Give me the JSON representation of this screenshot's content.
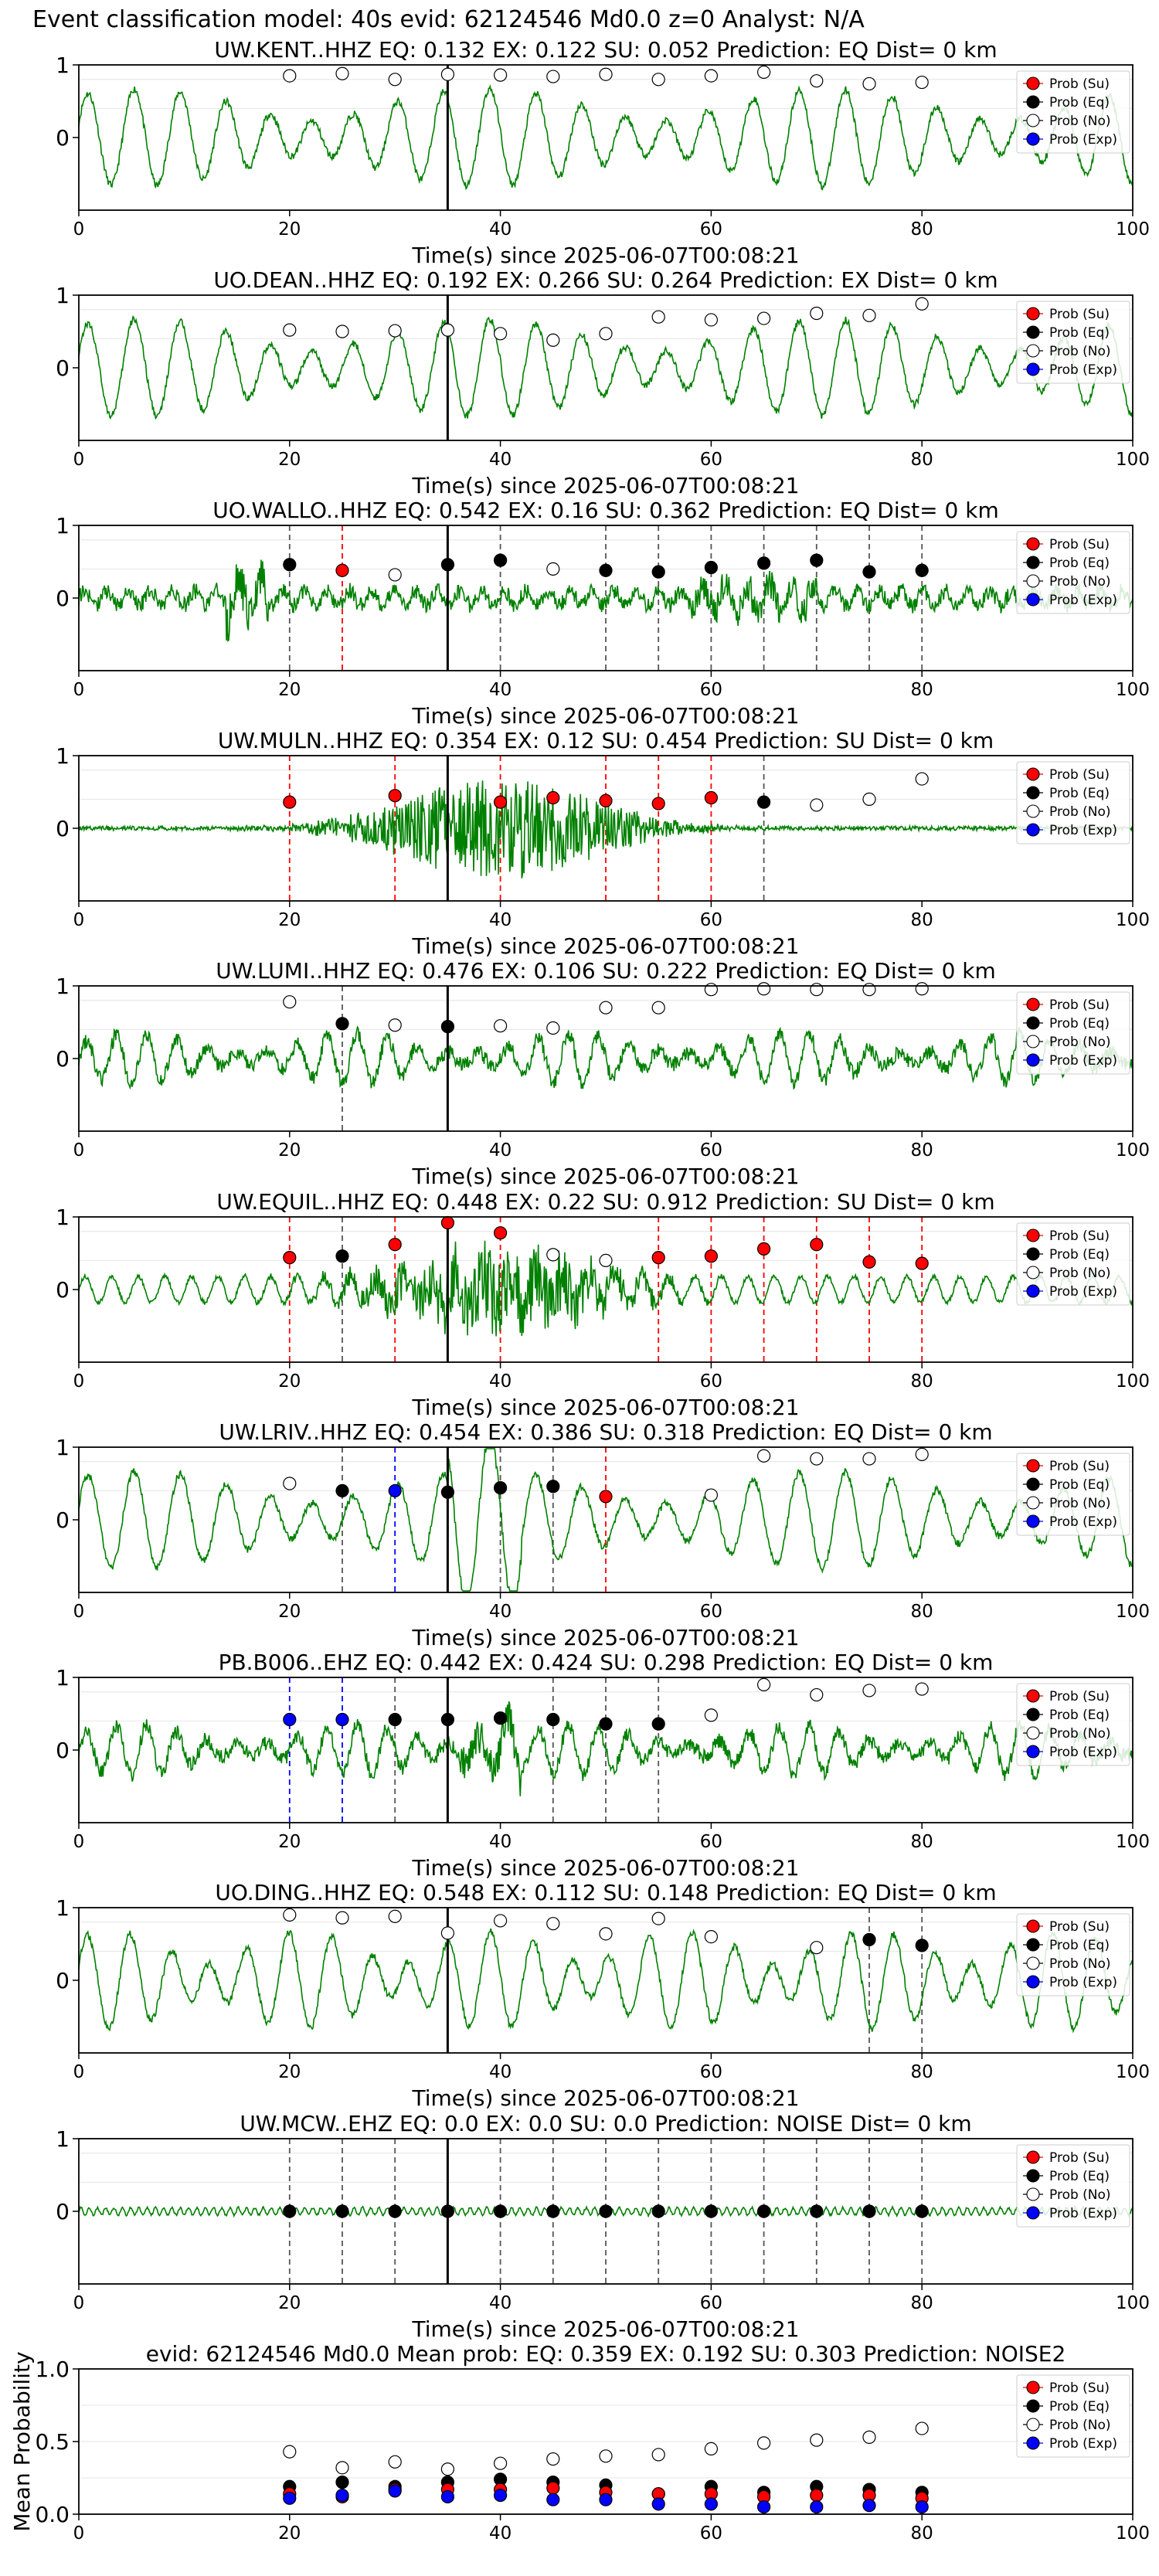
{
  "suptitle": "Event classification model: 40s evid: 62124546 Md0.0 z=0 Analyst: N/A",
  "colors": {
    "trace": "#008000",
    "su": "#ff0000",
    "eq": "#000000",
    "no": "#ffffff",
    "exp": "#0000ff",
    "su_line": "#ff0000",
    "eq_line": "#000000",
    "exp_line": "#0000ff"
  },
  "legend": [
    "Prob (Su)",
    "Prob (Eq)",
    "Prob (No)",
    "Prob (Exp)"
  ],
  "common": {
    "xlabel": "Time(s) since 2025-06-07T00:08:21",
    "xlim": [
      0,
      100
    ],
    "xticks": [
      0,
      20,
      40,
      60,
      80,
      100
    ],
    "pick_time": 35,
    "times": [
      20,
      25,
      30,
      35,
      40,
      45,
      50,
      55,
      60,
      65,
      70,
      75,
      80
    ]
  },
  "chart_data": [
    {
      "type": "line",
      "title": "UW.KENT..HHZ   EQ: 0.132  EX: 0.122  SU: 0.052   Prediction: EQ    Dist= 0 km",
      "yticks": [
        "1",
        "0"
      ],
      "trace": "smooth",
      "prob_no": [
        0.85,
        0.88,
        0.8,
        0.87,
        0.86,
        0.84,
        0.87,
        0.8,
        0.85,
        0.9,
        0.78,
        0.74,
        0.76
      ],
      "prob_eq": [],
      "prob_su": [],
      "prob_exp": [],
      "eq_lines": [],
      "su_lines": [],
      "exp_lines": []
    },
    {
      "type": "line",
      "title": "UO.DEAN..HHZ   EQ: 0.192  EX: 0.266  SU: 0.264   Prediction: EX    Dist= 0 km",
      "yticks": [
        "1",
        "0"
      ],
      "trace": "smooth",
      "prob_no": [
        0.52,
        0.5,
        0.51,
        0.52,
        0.47,
        0.38,
        0.47,
        0.7,
        0.66,
        0.68,
        0.75,
        0.72,
        0.88
      ],
      "prob_eq": [],
      "prob_su": [],
      "prob_exp": [],
      "eq_lines": [],
      "su_lines": [],
      "exp_lines": []
    },
    {
      "type": "line",
      "title": "UO.WALLO..HHZ   EQ: 0.542  EX: 0.16  SU: 0.362   Prediction: EQ    Dist= 0 km",
      "yticks": [
        "1",
        "0"
      ],
      "trace": "noisy",
      "prob_no": [
        [
          30,
          0.32
        ],
        [
          45,
          0.4
        ]
      ],
      "prob_eq": [
        [
          20,
          0.46
        ],
        [
          35,
          0.46
        ],
        [
          40,
          0.52
        ],
        [
          50,
          0.38
        ],
        [
          55,
          0.36
        ],
        [
          60,
          0.42
        ],
        [
          65,
          0.48
        ],
        [
          70,
          0.52
        ],
        [
          75,
          0.36
        ],
        [
          80,
          0.38
        ]
      ],
      "prob_su": [
        [
          25,
          0.38
        ]
      ],
      "prob_exp": [],
      "eq_lines": [
        20,
        40,
        50,
        55,
        60,
        65,
        70,
        75,
        80
      ],
      "su_lines": [
        25
      ],
      "exp_lines": []
    },
    {
      "type": "line",
      "title": "UW.MULN..HHZ   EQ: 0.354  EX: 0.12  SU: 0.454   Prediction: SU    Dist= 0 km",
      "yticks": [
        "1",
        "0"
      ],
      "trace": "burst",
      "prob_no": [
        [
          70,
          0.32
        ],
        [
          75,
          0.4
        ],
        [
          80,
          0.68
        ]
      ],
      "prob_eq": [
        [
          65,
          0.36
        ]
      ],
      "prob_su": [
        [
          20,
          0.36
        ],
        [
          30,
          0.45
        ],
        [
          40,
          0.36
        ],
        [
          45,
          0.42
        ],
        [
          50,
          0.38
        ],
        [
          55,
          0.34
        ],
        [
          60,
          0.42
        ]
      ],
      "prob_exp": [],
      "eq_lines": [
        65
      ],
      "su_lines": [
        20,
        30,
        40,
        50,
        55,
        60
      ],
      "exp_lines": []
    },
    {
      "type": "line",
      "title": "UW.LUMI..HHZ   EQ: 0.476  EX: 0.106  SU: 0.222   Prediction: EQ    Dist= 0 km",
      "yticks": [
        "1",
        "0"
      ],
      "trace": "medium",
      "prob_no": [
        [
          20,
          0.78
        ],
        [
          30,
          0.46
        ],
        [
          40,
          0.45
        ],
        [
          45,
          0.42
        ],
        [
          50,
          0.7
        ],
        [
          55,
          0.7
        ],
        [
          60,
          0.95
        ],
        [
          65,
          0.96
        ],
        [
          70,
          0.95
        ],
        [
          75,
          0.95
        ],
        [
          80,
          0.96
        ]
      ],
      "prob_eq": [
        [
          25,
          0.48
        ],
        [
          35,
          0.44
        ]
      ],
      "prob_su": [],
      "prob_exp": [],
      "eq_lines": [
        25
      ],
      "su_lines": [],
      "exp_lines": []
    },
    {
      "type": "line",
      "title": "UW.EQUIL..HHZ   EQ: 0.448  EX: 0.22  SU: 0.912   Prediction: SU    Dist= 0 km",
      "yticks": [
        "1",
        "0"
      ],
      "trace": "burst2",
      "prob_no": [
        [
          45,
          0.48
        ],
        [
          50,
          0.4
        ]
      ],
      "prob_eq": [
        [
          25,
          0.46
        ]
      ],
      "prob_su": [
        [
          20,
          0.44
        ],
        [
          30,
          0.62
        ],
        [
          35,
          0.92
        ],
        [
          40,
          0.78
        ],
        [
          55,
          0.44
        ],
        [
          60,
          0.46
        ],
        [
          65,
          0.56
        ],
        [
          70,
          0.62
        ],
        [
          75,
          0.38
        ],
        [
          80,
          0.36
        ]
      ],
      "prob_exp": [],
      "eq_lines": [
        25
      ],
      "su_lines": [
        20,
        30,
        40,
        55,
        60,
        65,
        70,
        75,
        80
      ],
      "exp_lines": []
    },
    {
      "type": "line",
      "title": "UW.LRIV..HHZ   EQ: 0.454  EX: 0.386  SU: 0.318   Prediction: EQ    Dist= 0 km",
      "yticks": [
        "1",
        "0"
      ],
      "trace": "smooth2",
      "prob_no": [
        [
          20,
          0.5
        ],
        [
          60,
          0.34
        ],
        [
          65,
          0.88
        ],
        [
          70,
          0.84
        ],
        [
          75,
          0.84
        ],
        [
          80,
          0.9
        ]
      ],
      "prob_eq": [
        [
          25,
          0.4
        ],
        [
          35,
          0.38
        ],
        [
          40,
          0.44
        ],
        [
          45,
          0.46
        ]
      ],
      "prob_su": [
        [
          50,
          0.32
        ]
      ],
      "prob_exp": [
        [
          30,
          0.4
        ]
      ],
      "eq_lines": [
        25,
        40,
        45
      ],
      "su_lines": [
        50
      ],
      "exp_lines": [
        30
      ]
    },
    {
      "type": "line",
      "title": "PB.B006..EHZ   EQ: 0.442  EX: 0.424  SU: 0.298   Prediction: EQ    Dist= 0 km",
      "yticks": [
        "1",
        "0"
      ],
      "trace": "medium2",
      "prob_no": [
        [
          60,
          0.48
        ],
        [
          65,
          0.9
        ],
        [
          70,
          0.76
        ],
        [
          75,
          0.82
        ],
        [
          80,
          0.84
        ]
      ],
      "prob_eq": [
        [
          30,
          0.42
        ],
        [
          35,
          0.42
        ],
        [
          40,
          0.44
        ],
        [
          45,
          0.42
        ],
        [
          50,
          0.36
        ],
        [
          55,
          0.36
        ]
      ],
      "prob_su": [],
      "prob_exp": [
        [
          20,
          0.42
        ],
        [
          25,
          0.42
        ]
      ],
      "eq_lines": [
        30,
        45,
        50,
        55
      ],
      "su_lines": [],
      "exp_lines": [
        20,
        25
      ]
    },
    {
      "type": "line",
      "title": "UO.DING..HHZ   EQ: 0.548  EX: 0.112  SU: 0.148   Prediction: EQ    Dist= 0 km",
      "yticks": [
        "1",
        "0"
      ],
      "trace": "smooth3",
      "prob_no": [
        [
          20,
          0.9
        ],
        [
          25,
          0.86
        ],
        [
          30,
          0.88
        ],
        [
          35,
          0.65
        ],
        [
          40,
          0.82
        ],
        [
          45,
          0.78
        ],
        [
          50,
          0.64
        ],
        [
          55,
          0.85
        ],
        [
          60,
          0.6
        ],
        [
          70,
          0.45
        ]
      ],
      "prob_eq": [
        [
          75,
          0.56
        ],
        [
          80,
          0.48
        ]
      ],
      "prob_su": [],
      "prob_exp": [],
      "eq_lines": [
        75,
        80
      ],
      "su_lines": [],
      "exp_lines": []
    },
    {
      "type": "line",
      "title": "UW.MCW..EHZ   EQ: 0.0  EX: 0.0  SU: 0.0   Prediction: NOISE    Dist= 0 km",
      "yticks": [
        "1",
        "0"
      ],
      "trace": "flat",
      "prob_no": [],
      "prob_eq": [
        [
          20,
          0.0
        ],
        [
          25,
          0.0
        ],
        [
          30,
          0.0
        ],
        [
          35,
          0.0
        ],
        [
          40,
          0.0
        ],
        [
          45,
          0.0
        ],
        [
          50,
          0.0
        ],
        [
          55,
          0.0
        ],
        [
          60,
          0.0
        ],
        [
          65,
          0.0
        ],
        [
          70,
          0.0
        ],
        [
          75,
          0.0
        ],
        [
          80,
          0.0
        ]
      ],
      "prob_su": [],
      "prob_exp": [],
      "eq_lines": [
        20,
        25,
        30,
        40,
        45,
        50,
        55,
        60,
        65,
        70,
        75,
        80
      ],
      "su_lines": [],
      "exp_lines": []
    },
    {
      "type": "scatter",
      "title": "evid: 62124546  Md0.0   Mean prob:   EQ: 0.359  EX: 0.192  SU: 0.303   Prediction: NOISE2",
      "ylabel": "Mean Probability",
      "ylim": [
        0,
        1
      ],
      "yticks": [
        "0.0",
        "0.5",
        "1.0"
      ],
      "mean_no": [
        0.43,
        0.32,
        0.36,
        0.31,
        0.35,
        0.38,
        0.4,
        0.41,
        0.45,
        0.49,
        0.51,
        0.53,
        0.59
      ],
      "mean_eq": [
        0.19,
        0.22,
        0.19,
        0.22,
        0.24,
        0.22,
        0.2,
        0.14,
        0.19,
        0.15,
        0.19,
        0.17,
        0.15
      ],
      "mean_su": [
        0.14,
        0.12,
        0.17,
        0.17,
        0.17,
        0.18,
        0.15,
        0.14,
        0.14,
        0.12,
        0.13,
        0.13,
        0.11
      ],
      "mean_exp": [
        0.11,
        0.13,
        0.16,
        0.12,
        0.13,
        0.1,
        0.1,
        0.07,
        0.07,
        0.05,
        0.05,
        0.06,
        0.05
      ]
    }
  ]
}
